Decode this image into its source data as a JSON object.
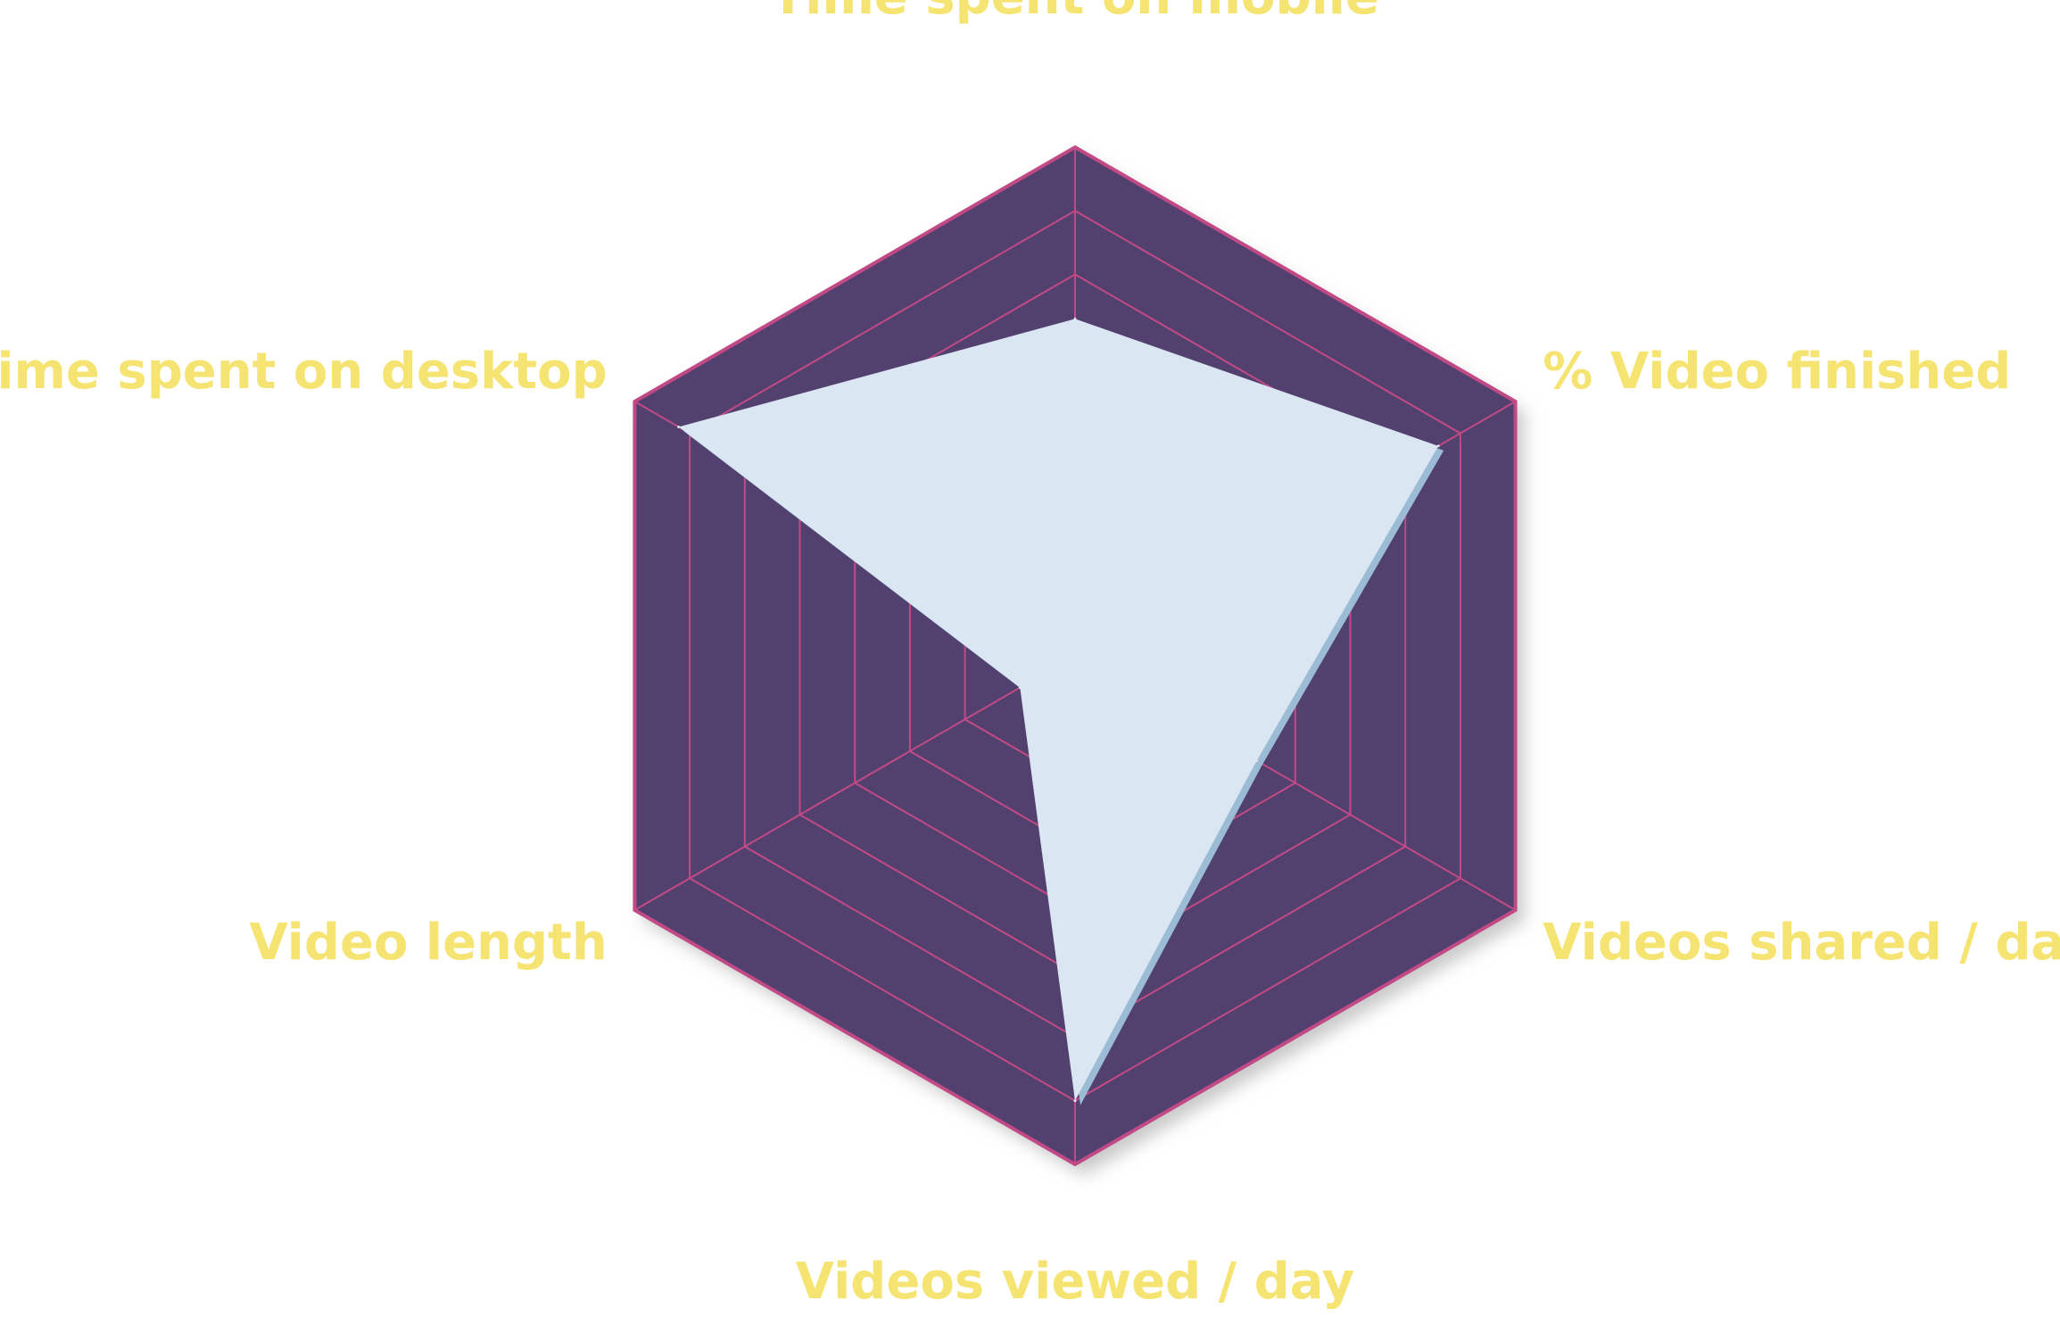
{
  "chart_data": {
    "type": "radar",
    "title": "",
    "axes": [
      "Time spent on mobile",
      "% Video finished",
      "Videos shared / day",
      "Videos viewed / day",
      "Video length",
      "Time spent on desktop"
    ],
    "rings": 8,
    "max": 8,
    "series": [
      {
        "values": [
          5.3,
          6.6,
          3.3,
          7.0,
          1.0,
          7.2
        ]
      }
    ],
    "grid": true,
    "legend": "none"
  },
  "colors": {
    "background": "#ffffff",
    "hexagon_fill": "#52416e",
    "grid_lines": "#c14a86",
    "polygon_fill": "#dbe6f3",
    "polygon_edge": "#9bbcd4",
    "shadow": "#c9c9c9",
    "labels": "#f6e472"
  }
}
